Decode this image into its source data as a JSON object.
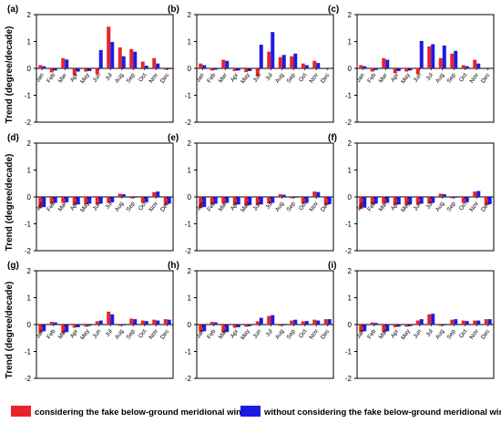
{
  "figure": {
    "ylabel": "Trend (degree/decade)",
    "legend": [
      {
        "label": "considering the fake below-ground meridional wind",
        "color": "#e8242a"
      },
      {
        "label": "without considering the fake below-ground meridional wind",
        "color": "#1c1ce0"
      }
    ]
  },
  "chart_data": [
    {
      "type": "bar",
      "panel": "(a)",
      "categories": [
        "Jan",
        "Feb",
        "Mar",
        "Apr",
        "May",
        "Jun",
        "Jul",
        "Aug",
        "Sep",
        "Oct",
        "Nov",
        "Dec"
      ],
      "ylim": [
        -2,
        2
      ],
      "yticks": [
        -2,
        -1,
        0,
        1,
        2
      ],
      "series": [
        {
          "values": [
            0.12,
            -0.15,
            0.38,
            -0.25,
            -0.12,
            -0.22,
            1.55,
            0.78,
            0.72,
            0.25,
            0.38,
            -0.05
          ]
        },
        {
          "values": [
            0.08,
            -0.08,
            0.33,
            -0.12,
            -0.1,
            0.68,
            0.98,
            0.45,
            0.62,
            0.1,
            0.18,
            -0.03
          ]
        }
      ]
    },
    {
      "type": "bar",
      "panel": "(b)",
      "categories": [
        "Jan",
        "Feb",
        "Mar",
        "Apr",
        "May",
        "Jun",
        "Jul",
        "Aug",
        "Sep",
        "Oct",
        "Nov",
        "Dec"
      ],
      "ylim": [
        -2,
        2
      ],
      "yticks": [
        -2,
        -1,
        0,
        1,
        2
      ],
      "series": [
        {
          "values": [
            0.18,
            -0.08,
            0.32,
            -0.1,
            -0.14,
            -0.28,
            0.62,
            0.42,
            0.45,
            0.18,
            0.28,
            -0.03
          ]
        },
        {
          "values": [
            0.12,
            -0.05,
            0.28,
            -0.08,
            -0.1,
            0.88,
            1.35,
            0.5,
            0.55,
            0.12,
            0.2,
            -0.02
          ]
        }
      ]
    },
    {
      "type": "bar",
      "panel": "(c)",
      "categories": [
        "Jan",
        "Feb",
        "Mar",
        "Apr",
        "May",
        "Jun",
        "Jul",
        "Aug",
        "Sep",
        "Oct",
        "Nov",
        "Dec"
      ],
      "ylim": [
        -2,
        2
      ],
      "yticks": [
        -2,
        -1,
        0,
        1,
        2
      ],
      "series": [
        {
          "values": [
            0.12,
            -0.12,
            0.38,
            -0.18,
            -0.12,
            -0.22,
            0.82,
            0.38,
            0.55,
            0.12,
            0.32,
            -0.03
          ]
        },
        {
          "values": [
            0.08,
            -0.06,
            0.32,
            -0.1,
            -0.08,
            1.02,
            0.9,
            0.85,
            0.65,
            0.08,
            0.18,
            -0.02
          ]
        }
      ]
    },
    {
      "type": "bar",
      "panel": "(d)",
      "categories": [
        "Jan",
        "Feb",
        "Mar",
        "Apr",
        "May",
        "Jun",
        "Jul",
        "Aug",
        "Sep",
        "Oct",
        "Nov",
        "Dec"
      ],
      "ylim": [
        -2,
        2
      ],
      "yticks": [
        -2,
        -1,
        0,
        1,
        2
      ],
      "series": [
        {
          "values": [
            -0.42,
            -0.25,
            -0.22,
            -0.3,
            -0.28,
            -0.28,
            -0.22,
            0.12,
            -0.05,
            -0.22,
            0.18,
            -0.3
          ]
        },
        {
          "values": [
            -0.38,
            -0.22,
            -0.2,
            -0.28,
            -0.25,
            -0.25,
            -0.2,
            0.1,
            -0.03,
            -0.2,
            0.2,
            -0.25
          ]
        }
      ]
    },
    {
      "type": "bar",
      "panel": "(e)",
      "categories": [
        "Jan",
        "Feb",
        "Mar",
        "Apr",
        "May",
        "Jun",
        "Jul",
        "Aug",
        "Sep",
        "Oct",
        "Nov",
        "Dec"
      ],
      "ylim": [
        -2,
        2
      ],
      "yticks": [
        -2,
        -1,
        0,
        1,
        2
      ],
      "series": [
        {
          "values": [
            -0.42,
            -0.28,
            -0.25,
            -0.3,
            -0.32,
            -0.3,
            -0.25,
            0.1,
            -0.05,
            -0.25,
            0.2,
            -0.3
          ]
        },
        {
          "values": [
            -0.38,
            -0.25,
            -0.22,
            -0.28,
            -0.3,
            -0.28,
            -0.22,
            0.08,
            -0.03,
            -0.22,
            0.18,
            -0.27
          ]
        }
      ]
    },
    {
      "type": "bar",
      "panel": "(f)",
      "categories": [
        "Jan",
        "Feb",
        "Mar",
        "Apr",
        "May",
        "Jun",
        "Jul",
        "Aug",
        "Sep",
        "Oct",
        "Nov",
        "Dec"
      ],
      "ylim": [
        -2,
        2
      ],
      "yticks": [
        -2,
        -1,
        0,
        1,
        2
      ],
      "series": [
        {
          "values": [
            -0.45,
            -0.28,
            -0.25,
            -0.3,
            -0.3,
            -0.28,
            -0.25,
            0.12,
            -0.05,
            -0.22,
            0.2,
            -0.3
          ]
        },
        {
          "values": [
            -0.4,
            -0.25,
            -0.22,
            -0.28,
            -0.28,
            -0.25,
            -0.22,
            0.1,
            -0.03,
            -0.2,
            0.22,
            -0.27
          ]
        }
      ]
    },
    {
      "type": "bar",
      "panel": "(g)",
      "categories": [
        "Jan",
        "Feb",
        "Mar",
        "Apr",
        "May",
        "Jun",
        "Jul",
        "Aug",
        "Sep",
        "Oct",
        "Nov",
        "Dec"
      ],
      "ylim": [
        -2,
        2
      ],
      "yticks": [
        -2,
        -1,
        0,
        1,
        2
      ],
      "series": [
        {
          "values": [
            -0.3,
            0.1,
            -0.32,
            -0.12,
            -0.08,
            0.12,
            0.48,
            -0.05,
            0.22,
            0.15,
            0.18,
            0.2
          ]
        },
        {
          "values": [
            -0.25,
            0.08,
            -0.28,
            -0.1,
            -0.05,
            0.15,
            0.38,
            -0.03,
            0.2,
            0.13,
            0.15,
            0.18
          ]
        }
      ]
    },
    {
      "type": "bar",
      "panel": "(h)",
      "categories": [
        "Jan",
        "Feb",
        "Mar",
        "Apr",
        "May",
        "Jun",
        "Jul",
        "Aug",
        "Sep",
        "Oct",
        "Nov",
        "Dec"
      ],
      "ylim": [
        -2,
        2
      ],
      "yticks": [
        -2,
        -1,
        0,
        1,
        2
      ],
      "series": [
        {
          "values": [
            -0.28,
            0.1,
            -0.3,
            -0.12,
            -0.08,
            0.12,
            0.32,
            -0.05,
            0.15,
            0.12,
            0.18,
            0.2
          ]
        },
        {
          "values": [
            -0.25,
            0.08,
            -0.28,
            -0.1,
            -0.06,
            0.25,
            0.35,
            -0.03,
            0.18,
            0.13,
            0.15,
            0.2
          ]
        }
      ]
    },
    {
      "type": "bar",
      "panel": "(i)",
      "categories": [
        "Jan",
        "Feb",
        "Mar",
        "Apr",
        "May",
        "Jun",
        "Jul",
        "Aug",
        "Sep",
        "Oct",
        "Nov",
        "Dec"
      ],
      "ylim": [
        -2,
        2
      ],
      "yticks": [
        -2,
        -1,
        0,
        1,
        2
      ],
      "series": [
        {
          "values": [
            -0.28,
            0.08,
            -0.28,
            -0.1,
            -0.08,
            0.15,
            0.38,
            -0.05,
            0.18,
            0.15,
            0.15,
            0.2
          ]
        },
        {
          "values": [
            -0.25,
            0.06,
            -0.25,
            -0.08,
            -0.06,
            0.2,
            0.4,
            -0.03,
            0.2,
            0.13,
            0.15,
            0.2
          ]
        }
      ]
    }
  ]
}
